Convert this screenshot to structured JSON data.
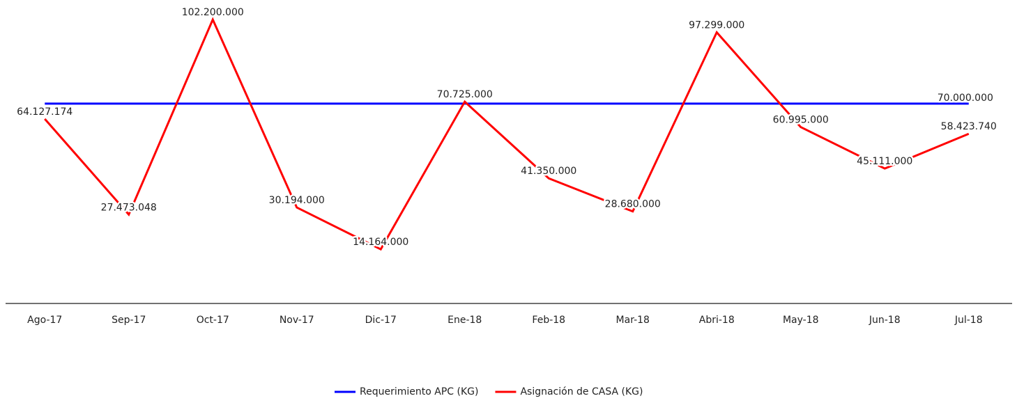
{
  "chart_data": {
    "type": "line",
    "categories": [
      "Ago-17",
      "Sep-17",
      "Oct-17",
      "Nov-17",
      "Dic-17",
      "Ene-18",
      "Feb-18",
      "Mar-18",
      "Abri-18",
      "May-18",
      "Jun-18",
      "Jul-18"
    ],
    "series": [
      {
        "name": "Requerimiento APC (KG)",
        "color": "#0000ff",
        "values": [
          70000000,
          70000000,
          70000000,
          70000000,
          70000000,
          70000000,
          70000000,
          70000000,
          70000000,
          70000000,
          70000000,
          70000000
        ],
        "value_labels": [
          null,
          null,
          null,
          null,
          null,
          null,
          null,
          null,
          null,
          null,
          null,
          "70.000.000"
        ]
      },
      {
        "name": "Asignación de CASA (KG)",
        "color": "#ff0000",
        "values": [
          64127174,
          27473048,
          102200000,
          30194000,
          14164000,
          70725000,
          41350000,
          28680000,
          97299000,
          60995000,
          45111000,
          58423740
        ],
        "value_labels": [
          "64.127.174",
          "27.473.048",
          "102.200.000",
          "30.194.000",
          "14.164.000",
          "70.725.000",
          "41.350.000",
          "28.680.000",
          "97.299.000",
          "60.995.000",
          "45.111.000",
          "58.423.740"
        ]
      }
    ],
    "ylim": [
      -6600000,
      109700000
    ],
    "legend": "bottom"
  }
}
